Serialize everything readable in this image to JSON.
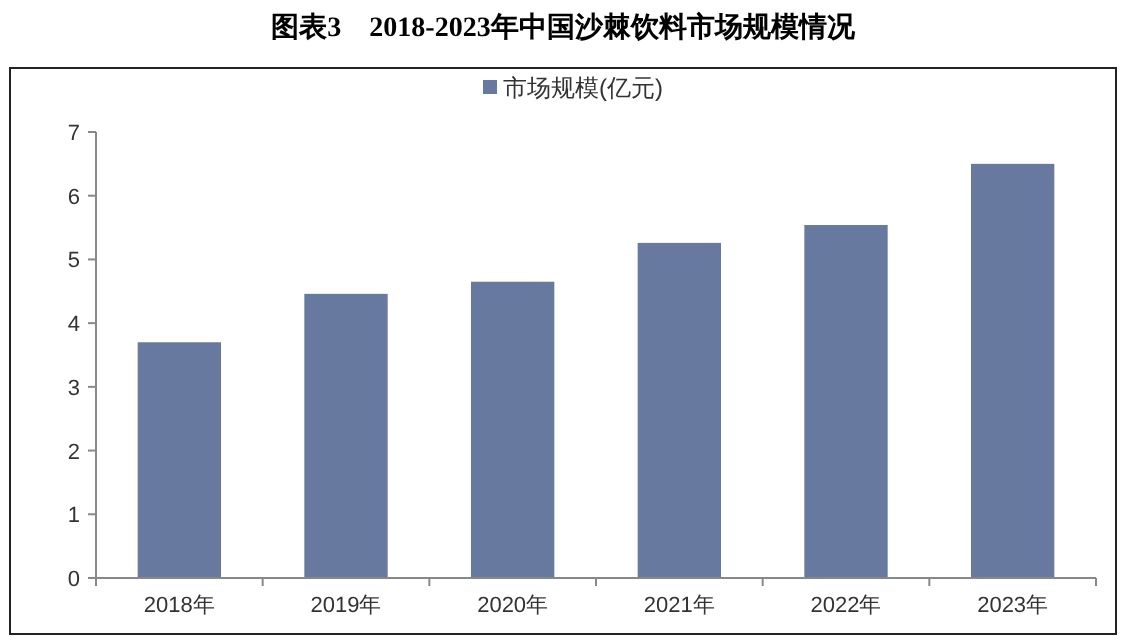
{
  "chart_data": {
    "type": "bar",
    "title": "图表3　2018-2023年中国沙棘饮料市场规模情况",
    "categories": [
      "2018年",
      "2019年",
      "2020年",
      "2021年",
      "2022年",
      "2023年"
    ],
    "series": [
      {
        "name": "市场规模(亿元)",
        "color": "#67799f",
        "values": [
          3.7,
          4.46,
          4.65,
          5.26,
          5.54,
          6.5
        ]
      }
    ],
    "ylim": [
      0,
      7
    ],
    "yticks": [
      0,
      1,
      2,
      3,
      4,
      5,
      6,
      7
    ],
    "grid": false,
    "legend": "top"
  }
}
